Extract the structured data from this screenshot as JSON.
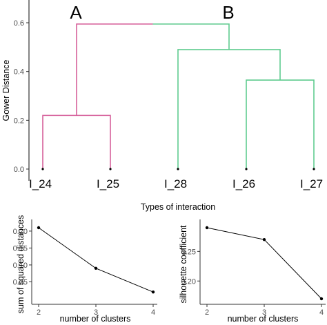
{
  "colors": {
    "cluster_A": "#d6609b",
    "cluster_B": "#5fcb8f",
    "line": "#000000",
    "axis": "#333333"
  },
  "chart_data": [
    {
      "type": "dendrogram",
      "ylabel": "Gower Distance",
      "xlabel": "Types of interaction",
      "ylim": [
        0,
        0.6
      ],
      "y_ticks": [
        "0.0",
        "0.2",
        "0.4",
        "0.6"
      ],
      "leaves": [
        "I_24",
        "I_25",
        "I_28",
        "I_26",
        "I_27"
      ],
      "clusters": [
        {
          "label": "A",
          "leaves": [
            "I_24",
            "I_25"
          ]
        },
        {
          "label": "B",
          "leaves": [
            "I_28",
            "I_26",
            "I_27"
          ]
        }
      ],
      "merges": [
        {
          "left": "I_24",
          "right": "I_25",
          "height": 0.22
        },
        {
          "left": "I_26",
          "right": "I_27",
          "height": 0.365
        },
        {
          "left": "I_28",
          "right": "I_26+I_27",
          "height": 0.49
        },
        {
          "left": "A",
          "right": "B",
          "height": 0.595
        }
      ]
    },
    {
      "type": "line",
      "xlabel": "number of clusters",
      "ylabel": "sum of squared distances",
      "x": [
        2,
        3,
        4
      ],
      "y": [
        0.21,
        0.09,
        0.02
      ],
      "xlim": [
        2,
        4
      ],
      "ylim": [
        0.0,
        0.21
      ],
      "x_ticks": [
        "2",
        "3",
        "4"
      ],
      "y_ticks": [
        "0.05",
        "0.10",
        "0.15",
        "0.20"
      ]
    },
    {
      "type": "line",
      "xlabel": "number of clusters",
      "ylabel": "silhouette coefficient",
      "x": [
        2,
        3,
        4
      ],
      "y": [
        0.29,
        0.27,
        0.17
      ],
      "xlim": [
        2,
        4
      ],
      "ylim": [
        0.17,
        0.29
      ],
      "x_ticks": [
        "2",
        "3",
        "4"
      ],
      "y_ticks": [
        "0.20",
        "0.25"
      ]
    }
  ]
}
